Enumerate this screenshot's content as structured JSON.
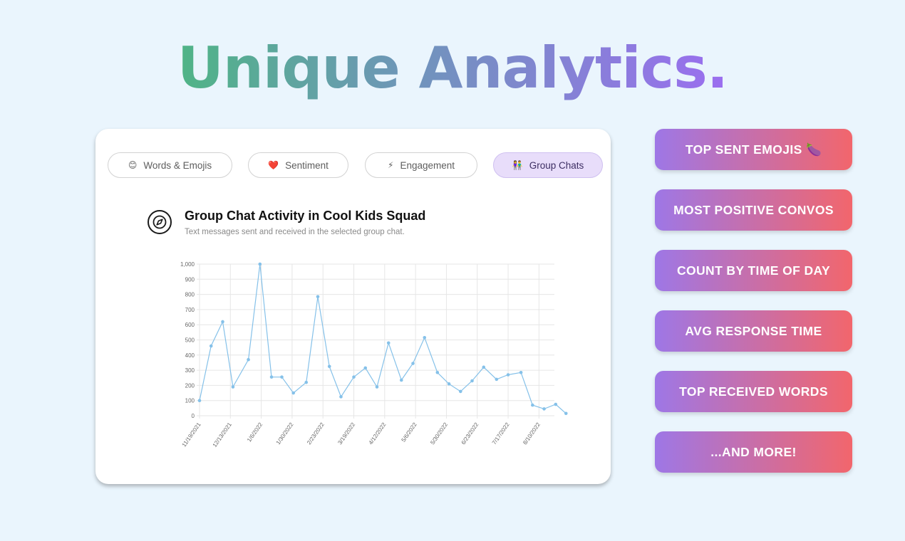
{
  "headline": "Unique Analytics.",
  "tabs": [
    {
      "label": "Words & Emojis",
      "icon": "😊",
      "icon_name": "smiley-icon"
    },
    {
      "label": "Sentiment",
      "icon": "❤️",
      "icon_name": "heart-icon"
    },
    {
      "label": "Engagement",
      "icon": "⚡",
      "icon_name": "lightning-icon"
    },
    {
      "label": "Group Chats",
      "icon": "👫",
      "icon_name": "couple-icon",
      "active": true
    }
  ],
  "chart_header": {
    "title": "Group Chat Activity in Cool Kids Squad",
    "subtitle": "Text messages sent and received in the selected group chat."
  },
  "chart_data": {
    "type": "line",
    "title": "",
    "xlabel": "",
    "ylabel": "",
    "ylim": [
      0,
      1000
    ],
    "yticks": [
      0,
      100,
      200,
      300,
      400,
      500,
      600,
      700,
      800,
      900,
      1000
    ],
    "ytick_labels": [
      "0",
      "100",
      "200",
      "300",
      "400",
      "500",
      "600",
      "700",
      "800",
      "900",
      "1,000"
    ],
    "xticks": [
      "11/19/2021",
      "12/13/2021",
      "1/6/2022",
      "1/30/2022",
      "2/23/2022",
      "3/19/2022",
      "4/12/2022",
      "5/6/2022",
      "5/30/2022",
      "6/23/2022",
      "7/17/2022",
      "8/10/2022"
    ],
    "x": [
      "11/19/2021",
      "11/25/2021",
      "12/1/2021",
      "12/7/2021",
      "12/13/2021",
      "12/19/2021",
      "12/25/2021",
      "12/31/2021",
      "1/6/2022",
      "1/12/2022",
      "1/18/2022",
      "1/24/2022",
      "1/30/2022",
      "2/5/2022",
      "2/11/2022",
      "2/17/2022",
      "2/23/2022",
      "3/1/2022",
      "3/7/2022",
      "3/13/2022",
      "3/19/2022",
      "3/25/2022",
      "3/31/2022",
      "4/6/2022",
      "4/12/2022",
      "4/18/2022",
      "4/24/2022",
      "4/30/2022",
      "5/6/2022",
      "5/12/2022",
      "5/18/2022",
      "5/24/2022",
      "5/30/2022",
      "6/5/2022",
      "6/11/2022",
      "6/17/2022",
      "6/23/2022",
      "6/29/2022",
      "7/5/2022",
      "7/11/2022",
      "7/17/2022",
      "7/23/2022",
      "7/29/2022",
      "8/4/2022",
      "8/10/2022",
      "8/16/2022",
      "8/22/2022"
    ],
    "series": [
      {
        "name": "",
        "color": "#85c1e9",
        "points": [
          [
            "11/19/2021",
            100
          ],
          [
            "11/28/2021",
            460
          ],
          [
            "12/7/2021",
            620
          ],
          [
            "12/15/2021",
            190
          ],
          [
            "12/27/2021",
            370
          ],
          [
            "1/5/2022",
            1000
          ],
          [
            "1/14/2022",
            255
          ],
          [
            "1/22/2022",
            255
          ],
          [
            "1/31/2022",
            150
          ],
          [
            "2/10/2022",
            220
          ],
          [
            "2/19/2022",
            785
          ],
          [
            "2/28/2022",
            325
          ],
          [
            "3/9/2022",
            125
          ],
          [
            "3/19/2022",
            255
          ],
          [
            "3/28/2022",
            315
          ],
          [
            "4/6/2022",
            190
          ],
          [
            "4/15/2022",
            480
          ],
          [
            "4/25/2022",
            235
          ],
          [
            "5/4/2022",
            345
          ],
          [
            "5/13/2022",
            515
          ],
          [
            "5/23/2022",
            285
          ],
          [
            "6/1/2022",
            210
          ],
          [
            "6/10/2022",
            160
          ],
          [
            "6/19/2022",
            230
          ],
          [
            "6/28/2022",
            320
          ],
          [
            "7/8/2022",
            240
          ],
          [
            "7/17/2022",
            270
          ],
          [
            "7/27/2022",
            285
          ],
          [
            "8/5/2022",
            70
          ],
          [
            "8/14/2022",
            45
          ],
          [
            "8/23/2022",
            75
          ],
          [
            "8/31/2022",
            15
          ]
        ]
      }
    ],
    "grid": true,
    "legend": "none"
  },
  "feature_pills": [
    "TOP SENT EMOJIS 🍆",
    "MOST POSITIVE CONVOS",
    "COUNT BY TIME OF DAY",
    "AVG RESPONSE TIME",
    "TOP RECEIVED WORDS",
    "...AND MORE!"
  ],
  "colors": {
    "background": "#eaf5fd",
    "headline_gradient": [
      "#4fb486",
      "#7193bd",
      "#9b6ef0"
    ],
    "pill_gradient": [
      "#9e77e6",
      "#f2666c"
    ],
    "active_tab": "#e8ddfa",
    "line": "#85c1e9"
  }
}
